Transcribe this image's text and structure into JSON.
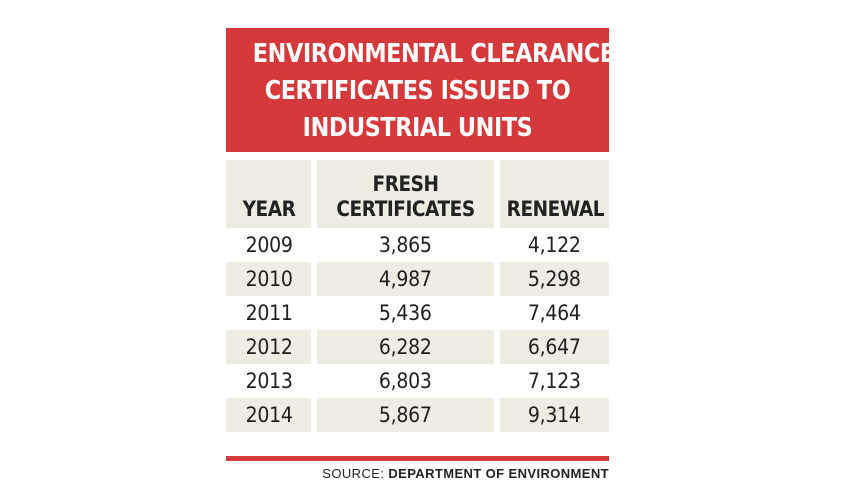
{
  "title_lines": [
    "ENVIRONMENTAL CLEARANCE",
    "CERTIFICATES ISSUED TO",
    "INDUSTRIAL UNITS"
  ],
  "columns": {
    "year": "YEAR",
    "fresh_line1": "FRESH",
    "fresh_line2": "CERTIFICATES",
    "renewal": "RENEWAL"
  },
  "source": {
    "label": "SOURCE:",
    "value": "DEPARTMENT OF ENVIRONMENT"
  },
  "colors": {
    "title_bg": "#d5393b",
    "shade": "#efece3"
  },
  "chart_data": {
    "type": "table",
    "title": "ENVIRONMENTAL CLEARANCE CERTIFICATES ISSUED TO INDUSTRIAL UNITS",
    "columns": [
      "YEAR",
      "FRESH CERTIFICATES",
      "RENEWAL"
    ],
    "rows": [
      {
        "year": "2009",
        "fresh": "3,865",
        "renewal": "4,122"
      },
      {
        "year": "2010",
        "fresh": "4,987",
        "renewal": "5,298"
      },
      {
        "year": "2011",
        "fresh": "5,436",
        "renewal": "7,464"
      },
      {
        "year": "2012",
        "fresh": "6,282",
        "renewal": "6,647"
      },
      {
        "year": "2013",
        "fresh": "6,803",
        "renewal": "7,123"
      },
      {
        "year": "2014",
        "fresh": "5,867",
        "renewal": "9,314"
      }
    ],
    "source": "SOURCE: DEPARTMENT OF ENVIRONMENT"
  }
}
